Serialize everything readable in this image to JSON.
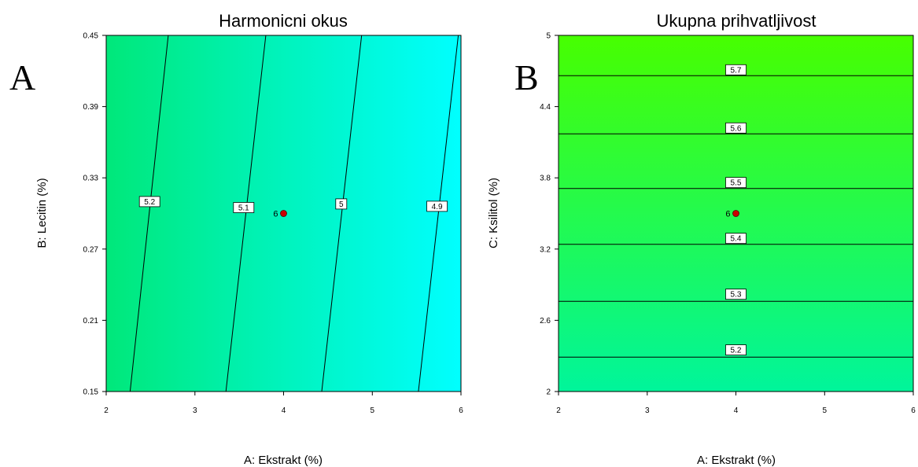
{
  "chart_data": [
    {
      "type": "contour",
      "panel_letter": "A",
      "title": "Harmonicni okus",
      "xlabel": "A: Ekstrakt (%)",
      "ylabel": "B: Lecitin (%)",
      "xlim": [
        2,
        6
      ],
      "ylim": [
        0.15,
        0.45
      ],
      "x_ticks": [
        "2",
        "3",
        "4",
        "5",
        "6"
      ],
      "y_ticks": [
        "0.15",
        "0.21",
        "0.27",
        "0.33",
        "0.39",
        "0.45"
      ],
      "fill_gradient": {
        "direction": "horizontal",
        "from": "#00e87a",
        "to": "#00ffff"
      },
      "contours": [
        {
          "label": "5.2",
          "points": [
            [
              2.27,
              0.15
            ],
            [
              2.7,
              0.45
            ]
          ],
          "label_at": [
            2.49,
            0.31
          ]
        },
        {
          "label": "5.1",
          "points": [
            [
              3.35,
              0.15
            ],
            [
              3.8,
              0.45
            ]
          ],
          "label_at": [
            3.55,
            0.305
          ]
        },
        {
          "label": "5",
          "points": [
            [
              4.43,
              0.15
            ],
            [
              4.88,
              0.45
            ]
          ],
          "label_at": [
            4.65,
            0.308
          ]
        },
        {
          "label": "4.9",
          "points": [
            [
              5.52,
              0.15
            ],
            [
              5.97,
              0.45
            ]
          ],
          "label_at": [
            5.73,
            0.306
          ]
        }
      ],
      "design_point": {
        "x": 4,
        "y": 0.3,
        "label": "6",
        "color": "#cc0000"
      }
    },
    {
      "type": "contour",
      "panel_letter": "B",
      "title": "Ukupna prihvatljivost",
      "xlabel": "A: Ekstrakt (%)",
      "ylabel": "C: Ksilitol (%)",
      "xlim": [
        2,
        6
      ],
      "ylim": [
        2,
        5
      ],
      "x_ticks": [
        "2",
        "3",
        "4",
        "5",
        "6"
      ],
      "y_ticks": [
        "2",
        "2.6",
        "3.2",
        "3.8",
        "4.4",
        "5"
      ],
      "fill_gradient": {
        "direction": "vertical",
        "from": "#00f59b",
        "to": "#47ff00"
      },
      "contours": [
        {
          "label": "5.7",
          "points": [
            [
              2,
              4.66
            ],
            [
              6,
              4.66
            ]
          ],
          "label_at": [
            4,
            4.71
          ]
        },
        {
          "label": "5.6",
          "points": [
            [
              2,
              4.17
            ],
            [
              6,
              4.17
            ]
          ],
          "label_at": [
            4,
            4.22
          ]
        },
        {
          "label": "5.5",
          "points": [
            [
              2,
              3.71
            ],
            [
              6,
              3.71
            ]
          ],
          "label_at": [
            4,
            3.76
          ]
        },
        {
          "label": "5.4",
          "points": [
            [
              2,
              3.24
            ],
            [
              6,
              3.24
            ]
          ],
          "label_at": [
            4,
            3.29
          ]
        },
        {
          "label": "5.3",
          "points": [
            [
              2,
              2.76
            ],
            [
              6,
              2.76
            ]
          ],
          "label_at": [
            4,
            2.82
          ]
        },
        {
          "label": "5.2",
          "points": [
            [
              2,
              2.29
            ],
            [
              6,
              2.29
            ]
          ],
          "label_at": [
            4,
            2.35
          ]
        }
      ],
      "design_point": {
        "x": 4,
        "y": 3.5,
        "label": "6",
        "color": "#cc0000"
      }
    }
  ]
}
